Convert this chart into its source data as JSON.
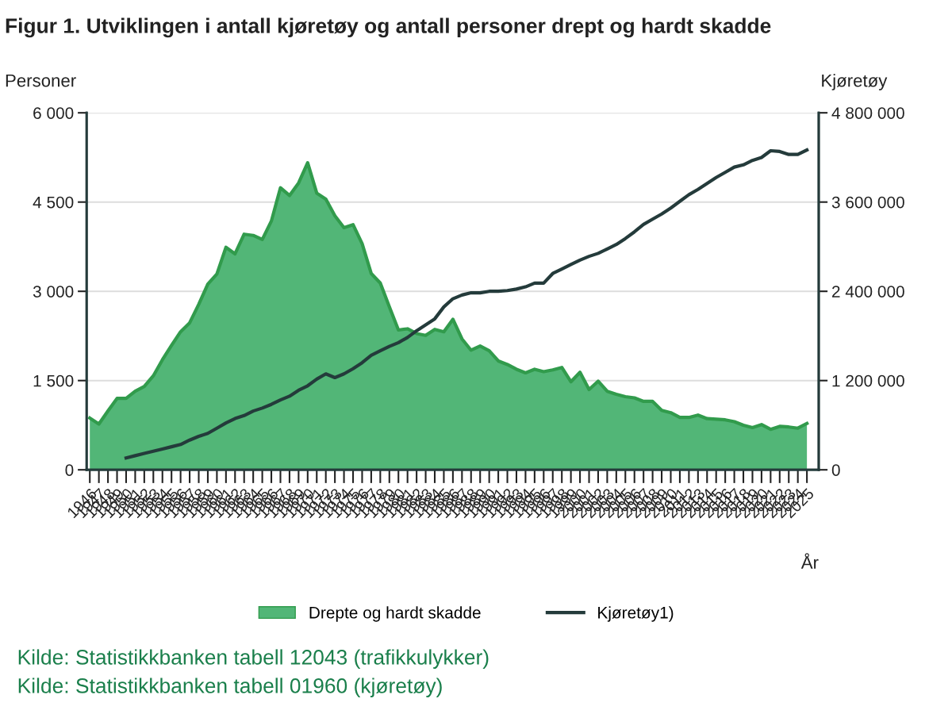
{
  "chart_data": {
    "type": "area",
    "title": "Figur 1. Utviklingen i antall kjøretøy og antall personer drept og hardt skadde",
    "ylabel": "Personer",
    "y2label": "Kjøretøy",
    "xlabel": "År",
    "categories": [
      "1946",
      "1947",
      "1948",
      "1949",
      "1950",
      "1951",
      "1952",
      "1953",
      "1954",
      "1955",
      "1956",
      "1957",
      "1958",
      "1959",
      "1960",
      "1961",
      "1962",
      "1963",
      "1964",
      "1965",
      "1966",
      "1967",
      "1968",
      "1969",
      "1970",
      "1971",
      "1972",
      "1973",
      "1974",
      "1975",
      "1976",
      "1977",
      "1978",
      "1979",
      "1980",
      "1981",
      "1982",
      "1983",
      "1984",
      "1985",
      "1986",
      "1987",
      "1988",
      "1989",
      "1990",
      "1991",
      "1992",
      "1993",
      "1994",
      "1995",
      "1996",
      "1997",
      "1998",
      "1999",
      "2000",
      "2001",
      "2002",
      "2003",
      "2004",
      "2005",
      "2006",
      "2007",
      "2008",
      "2009",
      "2010",
      "2011",
      "2012",
      "2013",
      "2014",
      "2015",
      "2016",
      "2017",
      "2018",
      "2019",
      "2020",
      "2021",
      "2022",
      "2023",
      "2024",
      "2025"
    ],
    "series": [
      {
        "name": "Drepte og hardt skadde",
        "color": "#52b677",
        "values": [
          870,
          770,
          990,
          1200,
          1200,
          1320,
          1400,
          1580,
          1850,
          2090,
          2320,
          2470,
          2780,
          3120,
          3290,
          3740,
          3630,
          3960,
          3940,
          3870,
          4180,
          4740,
          4610,
          4820,
          5160,
          4650,
          4550,
          4270,
          4070,
          4120,
          3800,
          3300,
          3140,
          2740,
          2350,
          2370,
          2290,
          2260,
          2360,
          2320,
          2530,
          2200,
          2010,
          2080,
          2000,
          1830,
          1770,
          1690,
          1630,
          1690,
          1650,
          1680,
          1720,
          1480,
          1640,
          1350,
          1490,
          1320,
          1270,
          1230,
          1210,
          1150,
          1150,
          1000,
          960,
          880,
          880,
          920,
          860,
          850,
          840,
          810,
          750,
          710,
          760,
          680,
          730,
          720,
          700,
          780
        ]
      },
      {
        "name": "Kjøretøy1)",
        "type": "line",
        "axis": "y2",
        "color": "#243b3b",
        "values": [
          null,
          null,
          null,
          null,
          160000,
          190000,
          220000,
          250000,
          280000,
          310000,
          340000,
          400000,
          450000,
          490000,
          560000,
          630000,
          690000,
          730000,
          790000,
          830000,
          880000,
          940000,
          990000,
          1070000,
          1130000,
          1220000,
          1290000,
          1240000,
          1290000,
          1360000,
          1440000,
          1540000,
          1600000,
          1660000,
          1710000,
          1780000,
          1870000,
          1950000,
          2030000,
          2190000,
          2300000,
          2350000,
          2380000,
          2380000,
          2400000,
          2400000,
          2410000,
          2430000,
          2460000,
          2510000,
          2510000,
          2640000,
          2700000,
          2760000,
          2820000,
          2870000,
          2910000,
          2970000,
          3030000,
          3110000,
          3200000,
          3300000,
          3370000,
          3440000,
          3520000,
          3610000,
          3700000,
          3770000,
          3850000,
          3930000,
          4000000,
          4070000,
          4100000,
          4160000,
          4200000,
          4290000,
          4280000,
          4240000,
          4240000,
          4300000
        ]
      }
    ],
    "ylim": [
      0,
      6000
    ],
    "yticks": [
      0,
      {
        "value": 1500,
        "label": "1 500"
      },
      {
        "value": 3000,
        "label": "3 000"
      },
      {
        "value": 4500,
        "label": "4 500"
      },
      {
        "value": 6000,
        "label": "6 000"
      }
    ],
    "y2lim": [
      0,
      4800000
    ],
    "y2ticks": [
      0,
      {
        "value": 1200000,
        "label": "1 200 000"
      },
      {
        "value": 2400000,
        "label": "2 400 000"
      },
      {
        "value": 3600000,
        "label": "3 600 000"
      },
      {
        "value": 4800000,
        "label": "4 800 000"
      }
    ],
    "grid": "y",
    "legend": "bottom",
    "annotations": [
      "Kilde: Statistikkbanken tabell 12043 (trafikkulykker)",
      "Kilde: Statistikkbanken tabell 01960 (kjøretøy)"
    ]
  }
}
